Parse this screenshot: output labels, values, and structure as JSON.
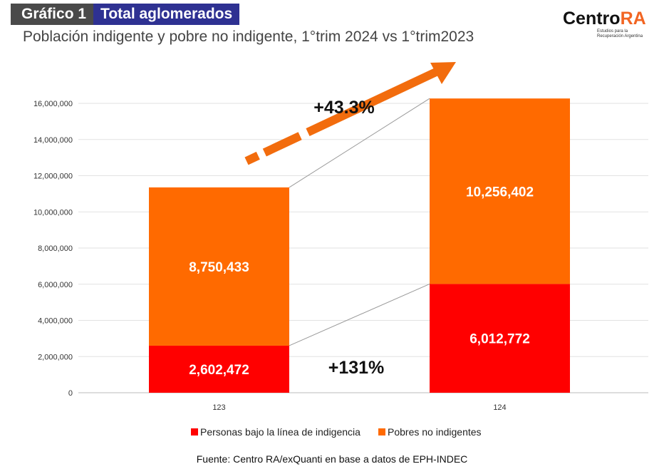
{
  "header": {
    "label": "Gráfico 1",
    "title": "Total aglomerados",
    "subtitle": "Población indigente y pobre no indigente, 1°trim 2024 vs 1°trim2023"
  },
  "logo": {
    "name": "CentroRA",
    "text1": "Centro",
    "text2": "RA",
    "tagline": "Estudios para la Recuperación Argentina"
  },
  "chart_data": {
    "type": "bar",
    "stacked": true,
    "categories": [
      "123",
      "124"
    ],
    "series": [
      {
        "name": "Personas bajo la línea de indigencia",
        "values": [
          2602472,
          6012772
        ],
        "labels": [
          "2,602,472",
          "6,012,772"
        ],
        "color": "#ff0000"
      },
      {
        "name": "Pobres no indigentes",
        "values": [
          8750433,
          10256402
        ],
        "labels": [
          "8,750,433",
          "10,256,402"
        ],
        "color": "#ff6a00"
      }
    ],
    "ylim": [
      0,
      16000000
    ],
    "yticks": [
      "0",
      "2,000,000",
      "4,000,000",
      "6,000,000",
      "8,000,000",
      "10,000,000",
      "12,000,000",
      "14,000,000",
      "16,000,000"
    ],
    "grid": true,
    "legend": "bottom",
    "annotations": [
      "+43.3%",
      "+131%"
    ]
  },
  "source": "Fuente: Centro RA/exQuanti en base a datos de EPH-INDEC"
}
